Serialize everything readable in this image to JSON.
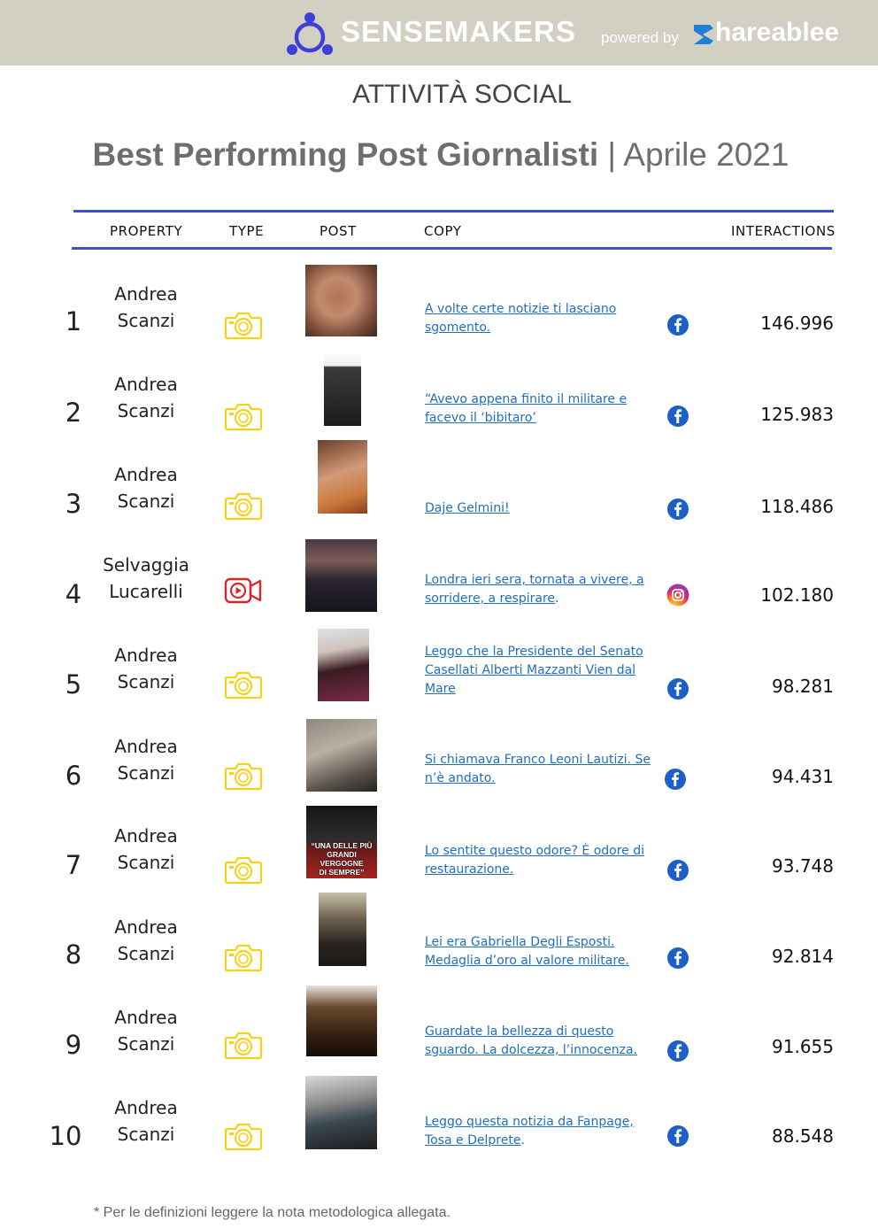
{
  "header": {
    "brand": "SENSEMAKERS",
    "powered_by": "powered by",
    "partner": "hareablee"
  },
  "section_label": "ATTIVITÀ SOCIAL",
  "title": {
    "main": "Best Performing Post Giornalisti",
    "separator": "|",
    "period": "Aprile 2021"
  },
  "columns": {
    "property": "PROPERTY",
    "type": "TYPE",
    "post": "POST",
    "copy": "COPY",
    "interactions": "INTERACTIONS"
  },
  "rows": [
    {
      "rank": "1",
      "first": "Andrea",
      "last": "Scanzi",
      "type": "photo",
      "type_icon": "camera-icon",
      "copy": "A volte certe notizie ti lasciano sgomento.",
      "network": "facebook",
      "interactions": "146.996"
    },
    {
      "rank": "2",
      "first": "Andrea",
      "last": "Scanzi",
      "type": "photo",
      "type_icon": "camera-icon",
      "copy": "“Avevo appena finito il militare e facevo il ‘bibitaro’",
      "network": "facebook",
      "interactions": "125.983"
    },
    {
      "rank": "3",
      "first": "Andrea",
      "last": "Scanzi",
      "type": "photo",
      "type_icon": "camera-icon",
      "copy": "Daje Gelmini!",
      "network": "facebook",
      "interactions": "118.486"
    },
    {
      "rank": "4",
      "first": "Selvaggia",
      "last": "Lucarelli",
      "type": "video",
      "type_icon": "video-camera-icon",
      "copy": "Londra ieri sera, tornata a vivere, a sorridere, a respirare",
      "copy_tail": ".",
      "network": "instagram",
      "interactions": "102.180"
    },
    {
      "rank": "5",
      "first": "Andrea",
      "last": "Scanzi",
      "type": "photo",
      "type_icon": "camera-icon",
      "copy": "Leggo che la Presidente del Senato Casellati Alberti Mazzanti Vien dal Mare",
      "network": "facebook",
      "interactions": "98.281"
    },
    {
      "rank": "6",
      "first": "Andrea",
      "last": "Scanzi",
      "type": "photo",
      "type_icon": "camera-icon",
      "copy": "Si chiamava Franco Leoni Lautizi. Se n’è andato.",
      "network": "facebook",
      "interactions": "94.431"
    },
    {
      "rank": "7",
      "first": "Andrea",
      "last": "Scanzi",
      "type": "photo",
      "type_icon": "camera-icon",
      "copy": "Lo sentite questo odore? È odore di restaurazione.",
      "network": "facebook",
      "interactions": "93.748",
      "thumb_text": [
        "“UNA DELLE PIÙ",
        "GRANDI VERGOGNE",
        "DI SEMPRE”"
      ]
    },
    {
      "rank": "8",
      "first": "Andrea",
      "last": "Scanzi",
      "type": "photo",
      "type_icon": "camera-icon",
      "copy": "Lei era Gabriella Degli Esposti. Medaglia d’oro al valore militare.",
      "network": "facebook",
      "interactions": "92.814"
    },
    {
      "rank": "9",
      "first": "Andrea",
      "last": "Scanzi",
      "type": "photo",
      "type_icon": "camera-icon",
      "copy": "Guardate la bellezza di questo sguardo. La dolcezza, l’innocenza.",
      "network": "facebook",
      "interactions": "91.655"
    },
    {
      "rank": "10",
      "first": "Andrea",
      "last": "Scanzi",
      "type": "photo",
      "type_icon": "camera-icon",
      "copy": "Leggo questa notizia da Fanpage, Tosa e Delprete",
      "copy_tail": ".",
      "network": "facebook",
      "interactions": "88.548"
    }
  ],
  "footnote": "* Per le definizioni leggere la nota metodologica allegata.",
  "colors": {
    "header_bg": "#d2cfc3",
    "brand_accent": "#3d3fd6",
    "partner_accent": "#1e7fd6",
    "rule": "#3d4fd8",
    "photo_icon": "#f5d21a",
    "video_icon": "#d8262c",
    "facebook": "#1c5fc6",
    "link": "#1f6fc0"
  }
}
